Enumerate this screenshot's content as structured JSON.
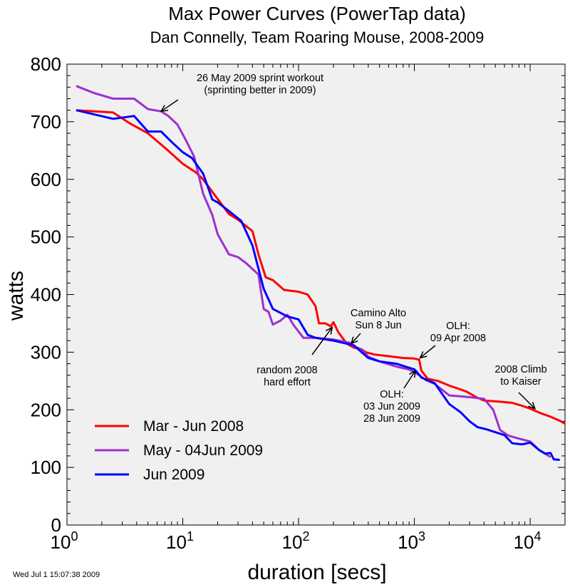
{
  "chart_data": {
    "type": "line",
    "title": "Max Power Curves (PowerTap data)",
    "subtitle": "Dan Connelly, Team Roaring Mouse, 2008-2009",
    "xlabel": "duration [secs]",
    "ylabel": "watts",
    "x_scale": "log",
    "xlim": [
      1,
      20000
    ],
    "ylim": [
      0,
      800
    ],
    "x_ticks": [
      {
        "value": 1,
        "base": "10",
        "exp": "0"
      },
      {
        "value": 10,
        "base": "10",
        "exp": "1"
      },
      {
        "value": 100,
        "base": "10",
        "exp": "2"
      },
      {
        "value": 1000,
        "base": "10",
        "exp": "3"
      },
      {
        "value": 10000,
        "base": "10",
        "exp": "4"
      }
    ],
    "y_ticks": [
      0,
      100,
      200,
      300,
      400,
      500,
      600,
      700,
      800
    ],
    "grid": false,
    "legend_position": "bottom-left",
    "series": [
      {
        "name": "Mar - Jun 2008",
        "color": "#ff0000",
        "points": [
          [
            1.2,
            720
          ],
          [
            2.5,
            716
          ],
          [
            3.5,
            697
          ],
          [
            5,
            680
          ],
          [
            7,
            655
          ],
          [
            10,
            627
          ],
          [
            13,
            612
          ],
          [
            15,
            600
          ],
          [
            20,
            566
          ],
          [
            25,
            540
          ],
          [
            30,
            530
          ],
          [
            40,
            510
          ],
          [
            45,
            470
          ],
          [
            52,
            430
          ],
          [
            60,
            425
          ],
          [
            75,
            408
          ],
          [
            100,
            405
          ],
          [
            120,
            400
          ],
          [
            140,
            380
          ],
          [
            150,
            350
          ],
          [
            170,
            350
          ],
          [
            190,
            345
          ],
          [
            200,
            352
          ],
          [
            220,
            335
          ],
          [
            260,
            315
          ],
          [
            300,
            308
          ],
          [
            350,
            305
          ],
          [
            380,
            300
          ],
          [
            450,
            296
          ],
          [
            600,
            293
          ],
          [
            800,
            290
          ],
          [
            1000,
            289
          ],
          [
            1100,
            287
          ],
          [
            1150,
            268
          ],
          [
            1300,
            254
          ],
          [
            1600,
            250
          ],
          [
            2000,
            242
          ],
          [
            2800,
            232
          ],
          [
            3500,
            221
          ],
          [
            4000,
            216
          ],
          [
            5500,
            214
          ],
          [
            7000,
            212
          ],
          [
            8500,
            207
          ],
          [
            10000,
            202
          ],
          [
            12000,
            195
          ],
          [
            15000,
            188
          ],
          [
            18000,
            181
          ],
          [
            20000,
            176
          ]
        ]
      },
      {
        "name": "May - 04Jun 2009",
        "color": "#9b30d0",
        "points": [
          [
            1.2,
            762
          ],
          [
            1.7,
            750
          ],
          [
            2.5,
            740
          ],
          [
            3.8,
            740
          ],
          [
            5,
            722
          ],
          [
            6.5,
            718
          ],
          [
            7.5,
            710
          ],
          [
            9,
            695
          ],
          [
            10.5,
            670
          ],
          [
            12.5,
            640
          ],
          [
            15,
            575
          ],
          [
            18,
            538
          ],
          [
            20,
            505
          ],
          [
            25,
            470
          ],
          [
            30,
            465
          ],
          [
            35,
            455
          ],
          [
            45,
            435
          ],
          [
            50,
            375
          ],
          [
            55,
            370
          ],
          [
            60,
            348
          ],
          [
            70,
            355
          ],
          [
            80,
            365
          ],
          [
            90,
            348
          ],
          [
            110,
            325
          ],
          [
            140,
            325
          ],
          [
            200,
            322
          ],
          [
            280,
            316
          ],
          [
            300,
            310
          ],
          [
            350,
            305
          ],
          [
            400,
            292
          ],
          [
            500,
            284
          ],
          [
            700,
            275
          ],
          [
            900,
            270
          ],
          [
            1000,
            265
          ],
          [
            1100,
            260
          ],
          [
            1250,
            252
          ],
          [
            1500,
            245
          ],
          [
            2000,
            225
          ],
          [
            3000,
            222
          ],
          [
            4000,
            219
          ],
          [
            4800,
            200
          ],
          [
            5500,
            165
          ],
          [
            6500,
            155
          ],
          [
            8000,
            150
          ],
          [
            10000,
            145
          ],
          [
            12000,
            130
          ],
          [
            15000,
            118
          ]
        ]
      },
      {
        "name": "Jun 2009",
        "color": "#0000ff",
        "points": [
          [
            1.2,
            720
          ],
          [
            2.5,
            705
          ],
          [
            3.8,
            710
          ],
          [
            5,
            683
          ],
          [
            6.5,
            683
          ],
          [
            8,
            665
          ],
          [
            10,
            647
          ],
          [
            12,
            637
          ],
          [
            15,
            610
          ],
          [
            18,
            565
          ],
          [
            20,
            560
          ],
          [
            25,
            545
          ],
          [
            32,
            528
          ],
          [
            40,
            485
          ],
          [
            50,
            410
          ],
          [
            60,
            375
          ],
          [
            80,
            362
          ],
          [
            100,
            357
          ],
          [
            120,
            330
          ],
          [
            140,
            325
          ],
          [
            200,
            320
          ],
          [
            300,
            312
          ],
          [
            400,
            290
          ],
          [
            500,
            284
          ],
          [
            700,
            280
          ],
          [
            900,
            273
          ],
          [
            1000,
            270
          ],
          [
            1050,
            266
          ],
          [
            1150,
            256
          ],
          [
            1500,
            246
          ],
          [
            2000,
            210
          ],
          [
            2500,
            196
          ],
          [
            3000,
            180
          ],
          [
            3500,
            170
          ],
          [
            4200,
            166
          ],
          [
            5200,
            160
          ],
          [
            6000,
            156
          ],
          [
            7000,
            142
          ],
          [
            8500,
            140
          ],
          [
            10000,
            143
          ],
          [
            12000,
            130
          ],
          [
            13500,
            124
          ],
          [
            15000,
            125
          ],
          [
            16000,
            114
          ],
          [
            18000,
            113
          ]
        ]
      }
    ],
    "annotations": [
      {
        "lines": [
          "26 May 2009 sprint workout",
          "(sprinting better in 2009)"
        ],
        "x": 6.5,
        "y": 718
      },
      {
        "lines": [
          "Camino Alto",
          "Sun 8 Jun"
        ],
        "x": 285,
        "y": 315
      },
      {
        "lines": [
          "random 2008",
          "hard effort"
        ],
        "x": 195,
        "y": 343
      },
      {
        "lines": [
          "OLH:",
          "09 Apr 2008"
        ],
        "x": 1120,
        "y": 290
      },
      {
        "lines": [
          "OLH:",
          "03 Jun 2009",
          "28 Jun 2009"
        ],
        "x": 1020,
        "y": 268
      },
      {
        "lines": [
          "2008 Climb",
          "to Kaiser"
        ],
        "x": 11000,
        "y": 202
      }
    ]
  },
  "timestamp": "Wed Jul  1 15:07:38 2009"
}
